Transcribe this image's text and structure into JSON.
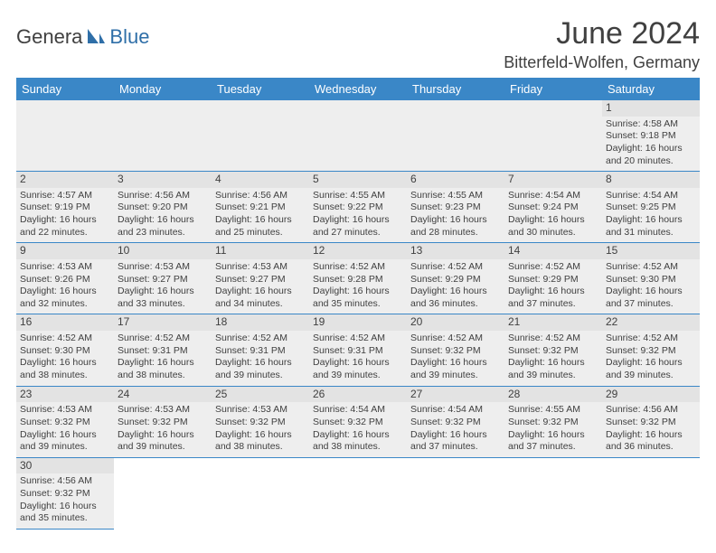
{
  "logo": {
    "general": "Genera",
    "blue": "Blue"
  },
  "title": "June 2024",
  "location": "Bitterfeld-Wolfen, Germany",
  "colors": {
    "header_bg": "#3a87c7",
    "header_fg": "#ffffff",
    "cell_bg": "#eeeeee",
    "rule": "#3a87c7",
    "text": "#404040",
    "logo_blue": "#2f6fa8"
  },
  "weekdays": [
    "Sunday",
    "Monday",
    "Tuesday",
    "Wednesday",
    "Thursday",
    "Friday",
    "Saturday"
  ],
  "weeks": [
    [
      null,
      null,
      null,
      null,
      null,
      null,
      {
        "n": "1",
        "sr": "4:58 AM",
        "ss": "9:18 PM",
        "dl": "16 hours and 20 minutes."
      }
    ],
    [
      {
        "n": "2",
        "sr": "4:57 AM",
        "ss": "9:19 PM",
        "dl": "16 hours and 22 minutes."
      },
      {
        "n": "3",
        "sr": "4:56 AM",
        "ss": "9:20 PM",
        "dl": "16 hours and 23 minutes."
      },
      {
        "n": "4",
        "sr": "4:56 AM",
        "ss": "9:21 PM",
        "dl": "16 hours and 25 minutes."
      },
      {
        "n": "5",
        "sr": "4:55 AM",
        "ss": "9:22 PM",
        "dl": "16 hours and 27 minutes."
      },
      {
        "n": "6",
        "sr": "4:55 AM",
        "ss": "9:23 PM",
        "dl": "16 hours and 28 minutes."
      },
      {
        "n": "7",
        "sr": "4:54 AM",
        "ss": "9:24 PM",
        "dl": "16 hours and 30 minutes."
      },
      {
        "n": "8",
        "sr": "4:54 AM",
        "ss": "9:25 PM",
        "dl": "16 hours and 31 minutes."
      }
    ],
    [
      {
        "n": "9",
        "sr": "4:53 AM",
        "ss": "9:26 PM",
        "dl": "16 hours and 32 minutes."
      },
      {
        "n": "10",
        "sr": "4:53 AM",
        "ss": "9:27 PM",
        "dl": "16 hours and 33 minutes."
      },
      {
        "n": "11",
        "sr": "4:53 AM",
        "ss": "9:27 PM",
        "dl": "16 hours and 34 minutes."
      },
      {
        "n": "12",
        "sr": "4:52 AM",
        "ss": "9:28 PM",
        "dl": "16 hours and 35 minutes."
      },
      {
        "n": "13",
        "sr": "4:52 AM",
        "ss": "9:29 PM",
        "dl": "16 hours and 36 minutes."
      },
      {
        "n": "14",
        "sr": "4:52 AM",
        "ss": "9:29 PM",
        "dl": "16 hours and 37 minutes."
      },
      {
        "n": "15",
        "sr": "4:52 AM",
        "ss": "9:30 PM",
        "dl": "16 hours and 37 minutes."
      }
    ],
    [
      {
        "n": "16",
        "sr": "4:52 AM",
        "ss": "9:30 PM",
        "dl": "16 hours and 38 minutes."
      },
      {
        "n": "17",
        "sr": "4:52 AM",
        "ss": "9:31 PM",
        "dl": "16 hours and 38 minutes."
      },
      {
        "n": "18",
        "sr": "4:52 AM",
        "ss": "9:31 PM",
        "dl": "16 hours and 39 minutes."
      },
      {
        "n": "19",
        "sr": "4:52 AM",
        "ss": "9:31 PM",
        "dl": "16 hours and 39 minutes."
      },
      {
        "n": "20",
        "sr": "4:52 AM",
        "ss": "9:32 PM",
        "dl": "16 hours and 39 minutes."
      },
      {
        "n": "21",
        "sr": "4:52 AM",
        "ss": "9:32 PM",
        "dl": "16 hours and 39 minutes."
      },
      {
        "n": "22",
        "sr": "4:52 AM",
        "ss": "9:32 PM",
        "dl": "16 hours and 39 minutes."
      }
    ],
    [
      {
        "n": "23",
        "sr": "4:53 AM",
        "ss": "9:32 PM",
        "dl": "16 hours and 39 minutes."
      },
      {
        "n": "24",
        "sr": "4:53 AM",
        "ss": "9:32 PM",
        "dl": "16 hours and 39 minutes."
      },
      {
        "n": "25",
        "sr": "4:53 AM",
        "ss": "9:32 PM",
        "dl": "16 hours and 38 minutes."
      },
      {
        "n": "26",
        "sr": "4:54 AM",
        "ss": "9:32 PM",
        "dl": "16 hours and 38 minutes."
      },
      {
        "n": "27",
        "sr": "4:54 AM",
        "ss": "9:32 PM",
        "dl": "16 hours and 37 minutes."
      },
      {
        "n": "28",
        "sr": "4:55 AM",
        "ss": "9:32 PM",
        "dl": "16 hours and 37 minutes."
      },
      {
        "n": "29",
        "sr": "4:56 AM",
        "ss": "9:32 PM",
        "dl": "16 hours and 36 minutes."
      }
    ],
    [
      {
        "n": "30",
        "sr": "4:56 AM",
        "ss": "9:32 PM",
        "dl": "16 hours and 35 minutes."
      },
      null,
      null,
      null,
      null,
      null,
      null
    ]
  ],
  "labels": {
    "sunrise": "Sunrise: ",
    "sunset": "Sunset: ",
    "daylight": "Daylight: "
  }
}
